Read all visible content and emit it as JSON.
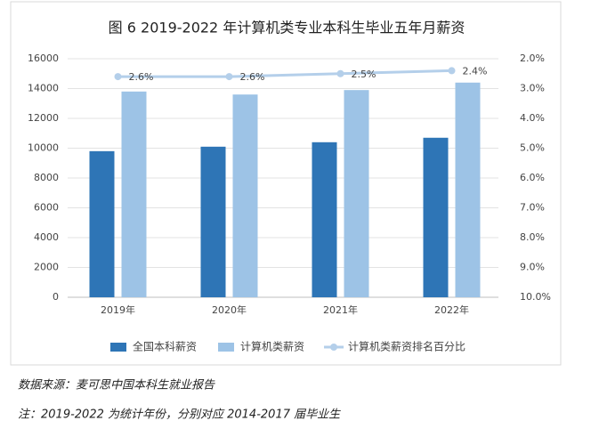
{
  "chart_data": {
    "type": "bar",
    "title": "图 6 2019-2022 年计算机类专业本科生毕业五年月薪资",
    "categories": [
      "2019年",
      "2020年",
      "2021年",
      "2022年"
    ],
    "series": [
      {
        "name": "全国本科薪资",
        "color": "#2e75b6",
        "values": [
          9800,
          10100,
          10400,
          10700
        ]
      },
      {
        "name": "计算机类薪资",
        "color": "#9dc3e6",
        "values": [
          13800,
          13600,
          13900,
          14400
        ]
      },
      {
        "name": "计算机类薪资排名百分比",
        "type": "line",
        "axis": "y2",
        "color": "#b4cfea",
        "values": [
          2.6,
          2.6,
          2.5,
          2.4
        ],
        "value_labels": [
          "2.6%",
          "2.6%",
          "2.5%",
          "2.4%"
        ]
      }
    ],
    "ylim": [
      0,
      16000
    ],
    "yticks": [
      0,
      2000,
      4000,
      6000,
      8000,
      10000,
      12000,
      14000,
      16000
    ],
    "y2lim": [
      10,
      2
    ],
    "y2ticks": [
      {
        "value": 2,
        "label": "2.0%"
      },
      {
        "value": 3,
        "label": "3.0%"
      },
      {
        "value": 4,
        "label": "4.0%"
      },
      {
        "value": 5,
        "label": "5.0%"
      },
      {
        "value": 6,
        "label": "6.0%"
      },
      {
        "value": 7,
        "label": "7.0%"
      },
      {
        "value": 8,
        "label": "8.0%"
      },
      {
        "value": 9,
        "label": "9.0%"
      },
      {
        "value": 10,
        "label": "10.0%"
      }
    ],
    "grid": true,
    "legend": "bottom",
    "footnotes": [
      "数据来源：麦可思中国本科生就业报告",
      "注：2019-2022 为统计年份，分别对应 2014-2017 届毕业生"
    ]
  }
}
